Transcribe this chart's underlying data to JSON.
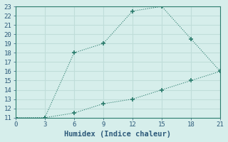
{
  "line1_x": [
    0,
    3,
    6,
    9,
    12,
    15,
    18,
    21
  ],
  "line1_y": [
    11,
    11,
    18,
    19,
    22.5,
    23,
    19.5,
    16
  ],
  "line2_x": [
    0,
    3,
    6,
    9,
    12,
    15,
    18,
    21
  ],
  "line2_y": [
    11,
    11,
    11.5,
    12.5,
    13,
    14,
    15,
    16
  ],
  "line_color": "#2d7d6e",
  "marker": "+",
  "marker_size": 5,
  "xlabel": "Humidex (Indice chaleur)",
  "xlim": [
    0,
    21
  ],
  "ylim": [
    11,
    23
  ],
  "xticks": [
    0,
    3,
    6,
    9,
    12,
    15,
    18,
    21
  ],
  "yticks": [
    11,
    12,
    13,
    14,
    15,
    16,
    17,
    18,
    19,
    20,
    21,
    22,
    23
  ],
  "bg_color": "#d6eeeb",
  "grid_color": "#c0ddd9",
  "tick_color": "#2d5a7a",
  "font_family": "monospace",
  "xlabel_fontsize": 7.5,
  "tick_fontsize": 6.5
}
